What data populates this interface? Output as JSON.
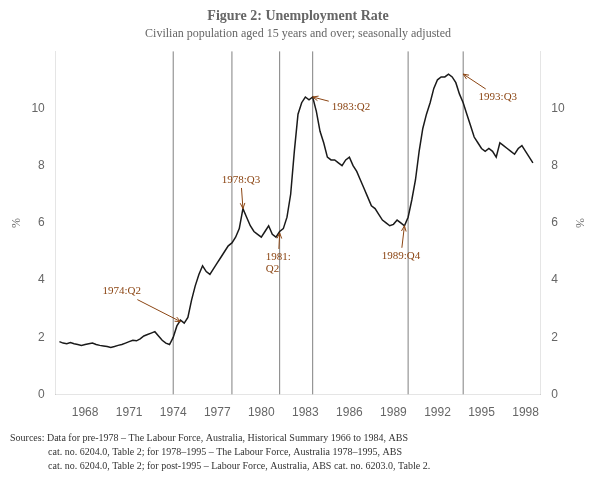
{
  "chart_data": {
    "type": "line",
    "title": "Figure 2: Unemployment Rate",
    "subtitle": "Civilian population aged 15 years and over; seasonally adjusted",
    "ylabel": "%",
    "y2label": "%",
    "x": [
      1966.25,
      1966.5,
      1966.75,
      1967.0,
      1967.25,
      1967.5,
      1967.75,
      1968.0,
      1968.25,
      1968.5,
      1968.75,
      1969.0,
      1969.25,
      1969.5,
      1969.75,
      1970.0,
      1970.25,
      1970.5,
      1970.75,
      1971.0,
      1971.25,
      1971.5,
      1971.75,
      1972.0,
      1972.25,
      1972.5,
      1972.75,
      1973.0,
      1973.25,
      1973.5,
      1973.75,
      1974.0,
      1974.25,
      1974.5,
      1974.75,
      1975.0,
      1975.25,
      1975.5,
      1975.75,
      1976.0,
      1976.25,
      1976.5,
      1976.75,
      1977.0,
      1977.25,
      1977.5,
      1977.75,
      1978.0,
      1978.25,
      1978.5,
      1978.75,
      1979.0,
      1979.25,
      1979.5,
      1979.75,
      1980.0,
      1980.25,
      1980.5,
      1980.75,
      1981.0,
      1981.25,
      1981.5,
      1981.75,
      1982.0,
      1982.25,
      1982.5,
      1982.75,
      1983.0,
      1983.25,
      1983.5,
      1983.75,
      1984.0,
      1984.25,
      1984.5,
      1984.75,
      1985.0,
      1985.25,
      1985.5,
      1985.75,
      1986.0,
      1986.25,
      1986.5,
      1986.75,
      1987.0,
      1987.25,
      1987.5,
      1987.75,
      1988.0,
      1988.25,
      1988.5,
      1988.75,
      1989.0,
      1989.25,
      1989.5,
      1989.75,
      1990.0,
      1990.25,
      1990.5,
      1990.75,
      1991.0,
      1991.25,
      1991.5,
      1991.75,
      1992.0,
      1992.25,
      1992.5,
      1992.75,
      1993.0,
      1993.25,
      1993.5,
      1993.75,
      1994.0,
      1994.25,
      1994.5,
      1994.75,
      1995.0,
      1995.25,
      1995.5,
      1995.75,
      1996.0,
      1996.25,
      1996.5,
      1996.75,
      1997.0,
      1997.25,
      1997.5,
      1997.75,
      1998.0,
      1998.25,
      1998.5
    ],
    "values": [
      1.85,
      1.8,
      1.78,
      1.82,
      1.78,
      1.75,
      1.72,
      1.75,
      1.78,
      1.8,
      1.75,
      1.72,
      1.7,
      1.68,
      1.65,
      1.68,
      1.72,
      1.75,
      1.8,
      1.85,
      1.9,
      1.88,
      1.95,
      2.05,
      2.1,
      2.15,
      2.2,
      2.05,
      1.9,
      1.8,
      1.75,
      2.0,
      2.4,
      2.6,
      2.5,
      2.7,
      3.3,
      3.8,
      4.2,
      4.5,
      4.3,
      4.2,
      4.4,
      4.6,
      4.8,
      5.0,
      5.2,
      5.3,
      5.5,
      5.8,
      6.5,
      6.2,
      5.9,
      5.7,
      5.6,
      5.5,
      5.7,
      5.9,
      5.6,
      5.5,
      5.7,
      5.8,
      6.2,
      7.0,
      8.5,
      9.8,
      10.2,
      10.4,
      10.3,
      10.4,
      9.9,
      9.2,
      8.8,
      8.3,
      8.2,
      8.2,
      8.1,
      8.0,
      8.2,
      8.3,
      8.0,
      7.8,
      7.5,
      7.2,
      6.9,
      6.6,
      6.5,
      6.3,
      6.1,
      6.0,
      5.9,
      5.95,
      6.1,
      6.0,
      5.9,
      6.2,
      6.8,
      7.5,
      8.5,
      9.3,
      9.8,
      10.2,
      10.7,
      11.0,
      11.1,
      11.1,
      11.2,
      11.1,
      10.9,
      10.5,
      10.2,
      9.8,
      9.4,
      9.0,
      8.8,
      8.6,
      8.5,
      8.6,
      8.5,
      8.3,
      8.8,
      8.7,
      8.6,
      8.5,
      8.4,
      8.6,
      8.7,
      8.5,
      8.3,
      8.1
    ],
    "color": "#1a1a1a",
    "xlim": [
      1966.0,
      1999.0
    ],
    "xticks": [
      1968,
      1971,
      1974,
      1977,
      1980,
      1983,
      1986,
      1989,
      1992,
      1995,
      1998
    ],
    "ylim": [
      0,
      12
    ],
    "yticks": [
      0,
      2,
      4,
      6,
      8,
      10
    ],
    "y2lim": [
      0,
      12
    ],
    "y2ticks": [
      0,
      2,
      4,
      6,
      8,
      10
    ],
    "grid": false,
    "vlines": [
      1974.0,
      1978.0,
      1981.25,
      1983.5,
      1990.0,
      1993.75
    ],
    "vline_color": "#808080",
    "annotation_color": "#8B4513",
    "annotations": [
      {
        "text": "1974:Q2",
        "x": 1974.5,
        "y": 2.55,
        "text_x": 1971.8,
        "text_y": 3.6,
        "align": "right"
      },
      {
        "text": "1978:Q3",
        "x": 1978.75,
        "y": 6.5,
        "text_x": 1977.3,
        "text_y": 7.5,
        "align": "left"
      },
      {
        "text": "1981:\nQ2",
        "x": 1981.25,
        "y": 5.65,
        "text_x": 1980.3,
        "text_y": 4.6,
        "align": "left"
      },
      {
        "text": "1983:Q2",
        "x": 1983.5,
        "y": 10.4,
        "text_x": 1984.8,
        "text_y": 10.05,
        "align": "left"
      },
      {
        "text": "1989:Q4",
        "x": 1989.75,
        "y": 5.9,
        "text_x": 1988.2,
        "text_y": 4.85,
        "align": "left"
      },
      {
        "text": "1993:Q3",
        "x": 1993.75,
        "y": 11.2,
        "text_x": 1994.8,
        "text_y": 10.4,
        "align": "left"
      }
    ],
    "source": [
      "Sources: Data for pre-1978 – The Labour Force, Australia, Historical Summary 1966 to 1984, ABS",
      "cat. no. 6204.0, Table 2; for 1978–1995 – The Labour Force, Australia 1978–1995, ABS",
      "cat. no. 6204.0, Table 2; for post-1995 – Labour Force, Australia, ABS cat. no. 6203.0, Table 2."
    ]
  }
}
